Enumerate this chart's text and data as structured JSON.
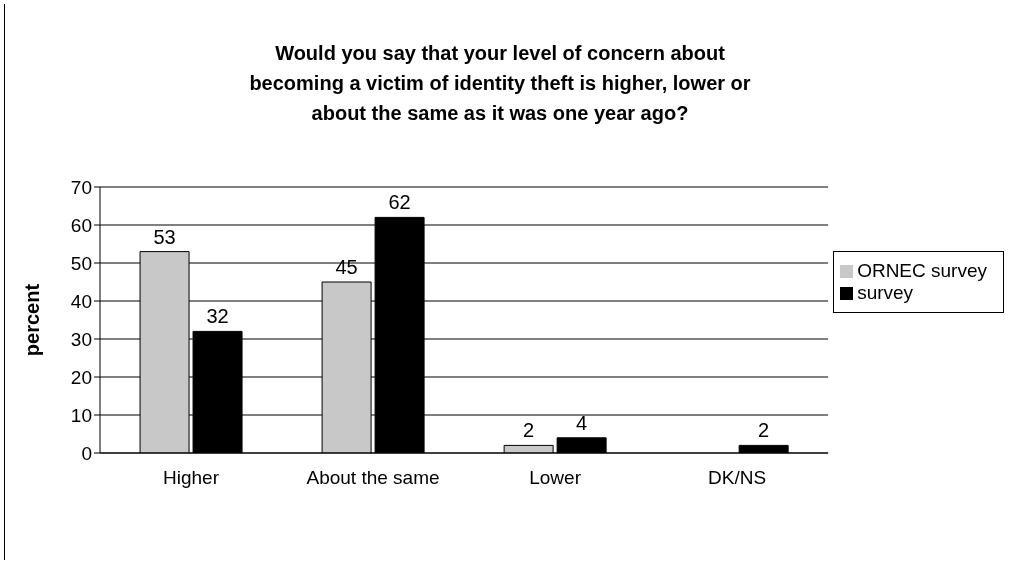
{
  "chart_data": {
    "type": "bar",
    "title": "Would you say that your level of concern about becoming a victim of identity theft is higher, lower or about the same as it was one year ago?",
    "ylabel": "percent",
    "categories": [
      "Higher",
      "About the same",
      "Lower",
      "DK/NS"
    ],
    "series": [
      {
        "name": "ORNEC survey",
        "color": "#c8c8c8",
        "values": [
          53,
          45,
          2,
          null
        ]
      },
      {
        "name": "survey",
        "color": "#000000",
        "values": [
          32,
          62,
          4,
          2
        ]
      }
    ],
    "ylim": [
      0,
      70
    ],
    "yticks": [
      0,
      10,
      20,
      30,
      40,
      50,
      60,
      70
    ],
    "grid": "y",
    "legend": "right",
    "data_labels": true
  }
}
